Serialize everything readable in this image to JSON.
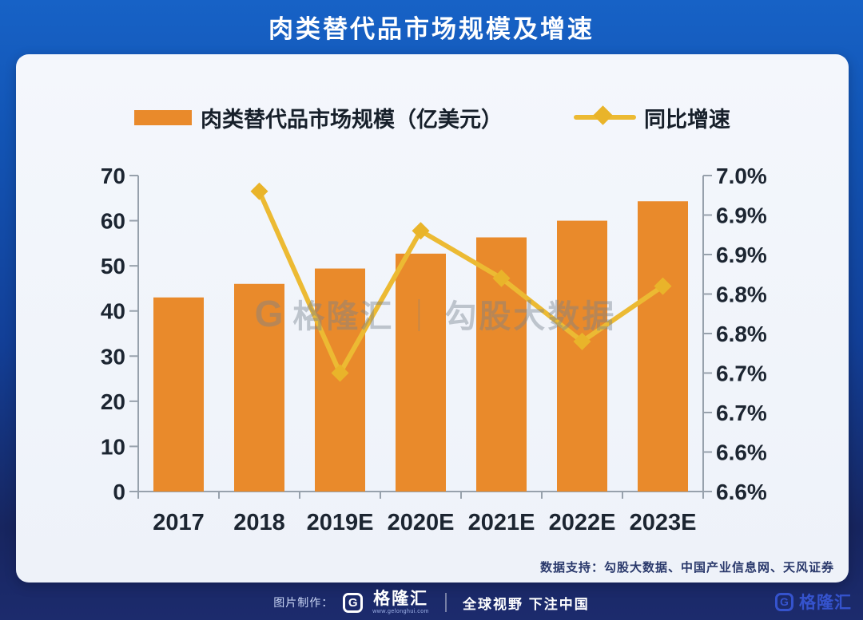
{
  "header": {
    "title": "肉类替代品市场规模及增速"
  },
  "legend": {
    "items": [
      {
        "label": "肉类替代品市场规模（亿美元）",
        "marker": "bar",
        "color": "#e98a2b"
      },
      {
        "label": "同比增速",
        "marker": "line-diamond",
        "color": "#ecba33"
      }
    ]
  },
  "chart_data": {
    "type": "bar",
    "categories": [
      "2017",
      "2018",
      "2019E",
      "2020E",
      "2021E",
      "2022E",
      "2023E"
    ],
    "series": [
      {
        "name": "肉类替代品市场规模（亿美元）",
        "type": "bar",
        "axis": "left",
        "values": [
          43,
          46,
          49.4,
          52.7,
          56.3,
          60,
          64.3
        ],
        "color": "#e98a2b"
      },
      {
        "name": "同比增速",
        "type": "line",
        "axis": "right",
        "values": [
          null,
          6.98,
          6.75,
          6.93,
          6.87,
          6.79,
          6.86
        ],
        "color": "#ecba33",
        "marker_color": "#e9b42a",
        "unit": "%"
      }
    ],
    "left_axis": {
      "ticks": [
        0,
        10,
        20,
        30,
        40,
        50,
        60,
        70
      ],
      "range": [
        0,
        70
      ]
    },
    "right_axis": {
      "tick_values": [
        7.0,
        6.95,
        6.9,
        6.85,
        6.8,
        6.75,
        6.7,
        6.65,
        6.6
      ],
      "tick_labels": [
        "7.0%",
        "6.9%",
        "6.9%",
        "6.8%",
        "6.8%",
        "6.7%",
        "6.7%",
        "6.6%",
        "6.6%"
      ],
      "range": [
        6.6,
        7.0
      ]
    },
    "grid": false,
    "legend_position": "top",
    "title": "肉类替代品市场规模及增速"
  },
  "watermark": {
    "logo_letter": "G",
    "brand": "格隆汇",
    "divider": "｜",
    "text": "勾股大数据"
  },
  "footer": {
    "source": "数据支持：勾股大数据、中国产业信息网、天风证券"
  },
  "bottom_bar": {
    "credit_label": "图片制作：",
    "logo_letter": "G",
    "brand": "格隆汇",
    "brand_url": "www.gelonghui.com",
    "slogan": "全球视野 下注中国",
    "corner_logo_letter": "G",
    "corner_brand": "格隆汇"
  }
}
